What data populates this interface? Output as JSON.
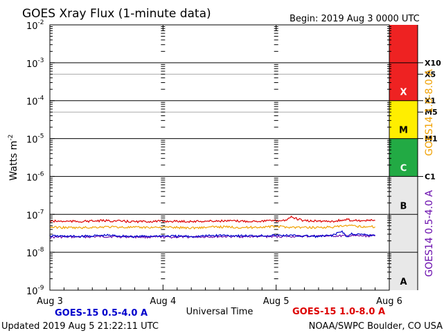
{
  "chart_data": {
    "type": "line",
    "title": "GOES Xray Flux (1-minute data)",
    "begin_label": "Begin:  2019 Aug 3 0000 UTC",
    "ylabel": "Watts m",
    "ylabel_sup": "-2",
    "xlabel": "Universal Time",
    "y_scale": "log",
    "ylim": [
      1e-09,
      0.01
    ],
    "y_ticks": [
      {
        "base": "10",
        "exp": "-2"
      },
      {
        "base": "10",
        "exp": "-3"
      },
      {
        "base": "10",
        "exp": "-4"
      },
      {
        "base": "10",
        "exp": "-5"
      },
      {
        "base": "10",
        "exp": "-6"
      },
      {
        "base": "10",
        "exp": "-7"
      },
      {
        "base": "10",
        "exp": "-8"
      },
      {
        "base": "10",
        "exp": "-9"
      }
    ],
    "xlim": [
      "2019-08-03",
      "2019-08-06"
    ],
    "x_ticks": [
      "Aug 3",
      "Aug 4",
      "Aug 5",
      "Aug 6"
    ],
    "grid": true,
    "flare_classes": [
      {
        "label": "X",
        "from": 0.0001,
        "to": 0.01,
        "color": "#ee2222"
      },
      {
        "label": "M",
        "from": 1e-05,
        "to": 0.0001,
        "color": "#ffee00"
      },
      {
        "label": "C",
        "from": 1e-06,
        "to": 1e-05,
        "color": "#22aa44"
      },
      {
        "label": "B",
        "from": 1e-07,
        "to": 1e-06,
        "color": "#e8e8e8"
      },
      {
        "label": "A",
        "from": 1e-09,
        "to": 1e-07,
        "color": "#e8e8e8"
      }
    ],
    "right_markers": [
      {
        "label": "X10",
        "value": 0.001
      },
      {
        "label": "X5",
        "value": 0.0005
      },
      {
        "label": "X1",
        "value": 0.0001
      },
      {
        "label": "M5",
        "value": 5e-05
      },
      {
        "label": "M1",
        "value": 1e-05
      },
      {
        "label": "C1",
        "value": 1e-06
      }
    ],
    "series": [
      {
        "name": "GOES-15 1.0-8.0 A",
        "color": "#dd0000",
        "x": [
          "2019-08-03 00:00",
          "2019-08-03 06:00",
          "2019-08-03 12:00",
          "2019-08-03 18:00",
          "2019-08-04 00:00",
          "2019-08-04 06:00",
          "2019-08-04 12:00",
          "2019-08-04 18:00",
          "2019-08-05 00:00",
          "2019-08-05 02:00",
          "2019-08-05 03:00",
          "2019-08-05 06:00",
          "2019-08-05 12:00",
          "2019-08-05 15:00",
          "2019-08-05 18:00",
          "2019-08-05 21:00"
        ],
        "y": [
          6.6e-08,
          6.5e-08,
          6.8e-08,
          6.4e-08,
          6.6e-08,
          6.5e-08,
          6.7e-08,
          6.6e-08,
          6.8e-08,
          7e-08,
          8.5e-08,
          6.7e-08,
          6.6e-08,
          7.2e-08,
          6.8e-08,
          6.9e-08
        ]
      },
      {
        "name": "GOES-14 1.0-8.0 A",
        "color": "#f0a000",
        "x": [
          "2019-08-03 00:00",
          "2019-08-03 06:00",
          "2019-08-03 12:00",
          "2019-08-03 18:00",
          "2019-08-04 00:00",
          "2019-08-04 06:00",
          "2019-08-04 12:00",
          "2019-08-04 18:00",
          "2019-08-05 00:00",
          "2019-08-05 03:00",
          "2019-08-05 06:00",
          "2019-08-05 12:00",
          "2019-08-05 15:00",
          "2019-08-05 18:00",
          "2019-08-05 21:00"
        ],
        "y": [
          4.6e-08,
          4.4e-08,
          4.7e-08,
          4.5e-08,
          4.6e-08,
          4.4e-08,
          4.7e-08,
          4.5e-08,
          4.8e-08,
          4.6e-08,
          4.5e-08,
          4.6e-08,
          5e-08,
          4.8e-08,
          4.7e-08
        ]
      },
      {
        "name": "GOES-15 0.5-4.0 A",
        "color": "#0000cc",
        "x": [
          "2019-08-03 00:00",
          "2019-08-03 06:00",
          "2019-08-03 12:00",
          "2019-08-03 18:00",
          "2019-08-04 00:00",
          "2019-08-04 06:00",
          "2019-08-04 12:00",
          "2019-08-04 18:00",
          "2019-08-05 00:00",
          "2019-08-05 06:00",
          "2019-08-05 09:00",
          "2019-08-05 12:00",
          "2019-08-05 14:00",
          "2019-08-05 15:00",
          "2019-08-05 16:00",
          "2019-08-05 18:00",
          "2019-08-05 21:00"
        ],
        "y": [
          2.7e-08,
          2.6e-08,
          2.8e-08,
          2.6e-08,
          2.7e-08,
          2.6e-08,
          2.8e-08,
          2.7e-08,
          2.8e-08,
          2.7e-08,
          2.6e-08,
          2.8e-08,
          3.6e-08,
          2.5e-08,
          3.1e-08,
          2.9e-08,
          2.8e-08
        ]
      },
      {
        "name": "GOES-14 0.5-4.0 A",
        "color": "#6a0dad",
        "x": [
          "2019-08-03 00:00",
          "2019-08-03 12:00",
          "2019-08-04 00:00",
          "2019-08-04 12:00",
          "2019-08-05 00:00",
          "2019-08-05 12:00",
          "2019-08-05 21:00"
        ],
        "y": [
          2.5e-08,
          2.6e-08,
          2.5e-08,
          2.6e-08,
          2.6e-08,
          2.7e-08,
          2.7e-08
        ]
      }
    ],
    "legend": {
      "left": "GOES-15 0.5-4.0 A",
      "right": "GOES-15 1.0-8.0 A",
      "vertical_top": "GOES14 1.0-8.0 A",
      "vertical_bottom": "GOES14 0.5-4.0 A"
    }
  },
  "footer": {
    "updated": "Updated 2019 Aug  5 21:22:11 UTC",
    "source": "NOAA/SWPC Boulder, CO USA"
  }
}
